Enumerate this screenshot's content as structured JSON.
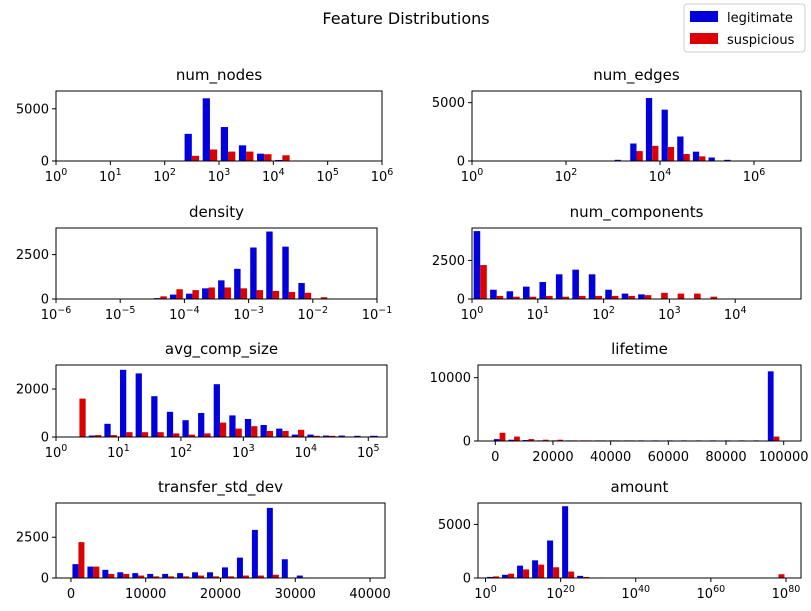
{
  "figure_title": "Feature Distributions",
  "legend": [
    {
      "label": "legitimate",
      "color": "#0000dd"
    },
    {
      "label": "suspicious",
      "color": "#dd0000"
    }
  ],
  "chart_data": [
    {
      "type": "bar",
      "title": "num_nodes",
      "xscale": "log",
      "xlim": [
        0,
        6
      ],
      "ylim": [
        0,
        6700
      ],
      "yticks": [
        0,
        5000
      ],
      "ytick_labels": [
        "0",
        "5000"
      ],
      "xticks": [
        0,
        1,
        2,
        3,
        4,
        5,
        6
      ],
      "xtick_labels": [
        "10",
        "10",
        "10",
        "10",
        "10",
        "10",
        "10"
      ],
      "xtick_sups": [
        "0",
        "1",
        "2",
        "3",
        "4",
        "5",
        "6"
      ],
      "bin_edges": [
        0,
        0.3333,
        0.6667,
        1,
        1.3333,
        1.6667,
        2,
        2.3333,
        2.6667,
        3,
        3.3333,
        3.6667,
        4,
        4.3333,
        4.6667,
        5,
        5.3333,
        5.6667,
        6
      ],
      "series": [
        {
          "name": "legitimate",
          "values": [
            0,
            0,
            0,
            0,
            0,
            0,
            0,
            2600,
            6000,
            3250,
            1500,
            700,
            100,
            50,
            0,
            0,
            0,
            0
          ]
        },
        {
          "name": "suspicious",
          "values": [
            0,
            0,
            0,
            0,
            0,
            0,
            0,
            500,
            1100,
            900,
            900,
            650,
            550,
            0,
            0,
            0,
            0,
            0
          ]
        }
      ]
    },
    {
      "type": "bar",
      "title": "num_edges",
      "xscale": "log",
      "xlim": [
        0,
        7
      ],
      "ylim": [
        0,
        6000
      ],
      "yticks": [
        0,
        5000
      ],
      "ytick_labels": [
        "0",
        "5000"
      ],
      "xticks": [
        0,
        2,
        4,
        6
      ],
      "xtick_labels": [
        "10",
        "10",
        "10",
        "10"
      ],
      "xtick_sups": [
        "0",
        "2",
        "4",
        "6"
      ],
      "bin_edges": [
        0,
        0.3333,
        0.6667,
        1,
        1.3333,
        1.6667,
        2,
        2.3333,
        2.6667,
        3,
        3.3333,
        3.6667,
        4,
        4.3333,
        4.6667,
        5,
        5.3333,
        5.6667,
        6,
        6.3333,
        6.6667,
        7
      ],
      "series": [
        {
          "name": "legitimate",
          "values": [
            0,
            0,
            0,
            0,
            0,
            0,
            0,
            0,
            0,
            100,
            1500,
            5400,
            4400,
            2100,
            800,
            300,
            100,
            0,
            0,
            0,
            0
          ]
        },
        {
          "name": "suspicious",
          "values": [
            0,
            0,
            0,
            0,
            0,
            0,
            0,
            0,
            0,
            0,
            850,
            1300,
            1200,
            600,
            400,
            0,
            0,
            0,
            0,
            0,
            0
          ]
        }
      ]
    },
    {
      "type": "bar",
      "title": "density",
      "xscale": "log",
      "xlim": [
        -6,
        -1
      ],
      "ylim": [
        0,
        4000
      ],
      "yticks": [
        0,
        2500
      ],
      "ytick_labels": [
        "0",
        "2500"
      ],
      "xticks": [
        -6,
        -5,
        -4,
        -3,
        -2,
        -1
      ],
      "xtick_labels": [
        "10",
        "10",
        "10",
        "10",
        "10",
        "10"
      ],
      "xtick_sups": [
        "−6",
        "−5",
        "−4",
        "−3",
        "−2",
        "−1"
      ],
      "bin_edges": [
        -6,
        -5.75,
        -5.5,
        -5.25,
        -5,
        -4.75,
        -4.5,
        -4.25,
        -4,
        -3.75,
        -3.5,
        -3.25,
        -3,
        -2.75,
        -2.5,
        -2.25,
        -2,
        -1.75,
        -1.5,
        -1.25,
        -1
      ],
      "series": [
        {
          "name": "legitimate",
          "values": [
            0,
            0,
            0,
            0,
            0,
            0,
            50,
            250,
            300,
            600,
            1050,
            1700,
            2900,
            3800,
            2950,
            900,
            0,
            0,
            0,
            0
          ]
        },
        {
          "name": "suspicious",
          "values": [
            0,
            0,
            0,
            0,
            0,
            0,
            150,
            550,
            500,
            650,
            650,
            600,
            500,
            450,
            400,
            350,
            100,
            0,
            0,
            0
          ]
        }
      ]
    },
    {
      "type": "bar",
      "title": "num_components",
      "xscale": "log",
      "xlim": [
        0,
        5
      ],
      "ylim": [
        0,
        4600
      ],
      "yticks": [
        0,
        2500
      ],
      "ytick_labels": [
        "0",
        "2500"
      ],
      "xticks": [
        0,
        1,
        2,
        3,
        4
      ],
      "xtick_labels": [
        "10",
        "10",
        "10",
        "10",
        "10"
      ],
      "xtick_sups": [
        "0",
        "1",
        "2",
        "3",
        "4"
      ],
      "bin_edges": [
        0,
        0.25,
        0.5,
        0.75,
        1,
        1.25,
        1.5,
        1.75,
        2,
        2.25,
        2.5,
        2.75,
        3,
        3.25,
        3.5,
        3.75,
        4,
        4.25,
        4.5,
        4.75,
        5
      ],
      "series": [
        {
          "name": "legitimate",
          "values": [
            4400,
            600,
            500,
            800,
            1100,
            1600,
            1900,
            1600,
            600,
            350,
            300,
            0,
            0,
            0,
            0,
            0,
            0,
            0,
            0,
            0
          ]
        },
        {
          "name": "suspicious",
          "values": [
            2200,
            200,
            150,
            150,
            200,
            150,
            200,
            200,
            200,
            200,
            250,
            400,
            350,
            350,
            150,
            0,
            0,
            0,
            0,
            0
          ]
        }
      ]
    },
    {
      "type": "bar",
      "title": "avg_comp_size",
      "xscale": "log",
      "xlim": [
        0,
        5.3
      ],
      "ylim": [
        0,
        3000
      ],
      "yticks": [
        0,
        2000
      ],
      "ytick_labels": [
        "0",
        "2000"
      ],
      "xticks": [
        0,
        1,
        2,
        3,
        4,
        5
      ],
      "xtick_labels": [
        "10",
        "10",
        "10",
        "10",
        "10",
        "10"
      ],
      "xtick_sups": [
        "0",
        "1",
        "2",
        "3",
        "4",
        "5"
      ],
      "bin_edges": [
        0,
        0.25,
        0.5,
        0.75,
        1,
        1.25,
        1.5,
        1.75,
        2,
        2.25,
        2.5,
        2.75,
        3,
        3.25,
        3.5,
        3.75,
        4,
        4.25,
        4.5,
        4.75,
        5,
        5.3
      ],
      "series": [
        {
          "name": "legitimate",
          "values": [
            0,
            0,
            60,
            550,
            2800,
            2650,
            1700,
            1050,
            700,
            1000,
            2200,
            900,
            750,
            500,
            350,
            100,
            100,
            60,
            60,
            50,
            50
          ]
        },
        {
          "name": "suspicious",
          "values": [
            0,
            1600,
            80,
            80,
            200,
            200,
            200,
            150,
            100,
            150,
            600,
            350,
            450,
            250,
            250,
            300,
            50,
            50,
            0,
            0,
            0
          ]
        }
      ]
    },
    {
      "type": "bar",
      "title": "lifetime",
      "xscale": "linear",
      "xlim": [
        -6000,
        106000
      ],
      "ylim": [
        0,
        12000
      ],
      "yticks": [
        0,
        10000
      ],
      "ytick_labels": [
        "0",
        "10000"
      ],
      "xticks": [
        0,
        20000,
        40000,
        60000,
        80000,
        100000
      ],
      "xtick_labels": [
        "0",
        "20000",
        "40000",
        "60000",
        "80000",
        "100000"
      ],
      "bin_edges": [
        -1000,
        4000,
        9000,
        14000,
        19000,
        24000,
        29000,
        34000,
        39000,
        44000,
        49000,
        54000,
        59000,
        64000,
        69000,
        74000,
        79000,
        84000,
        89000,
        94000,
        99000
      ],
      "series": [
        {
          "name": "legitimate",
          "values": [
            300,
            200,
            150,
            100,
            100,
            100,
            100,
            100,
            100,
            100,
            100,
            100,
            100,
            100,
            100,
            100,
            100,
            100,
            100,
            11000
          ]
        },
        {
          "name": "suspicious",
          "values": [
            1300,
            700,
            300,
            200,
            200,
            100,
            100,
            100,
            100,
            100,
            50,
            50,
            50,
            50,
            50,
            50,
            50,
            50,
            50,
            700
          ]
        }
      ]
    },
    {
      "type": "bar",
      "title": "transfer_std_dev",
      "xscale": "linear",
      "xlim": [
        -2000,
        42000
      ],
      "ylim": [
        0,
        4600
      ],
      "yticks": [
        0,
        2500
      ],
      "ytick_labels": [
        "0",
        "2500"
      ],
      "xticks": [
        0,
        10000,
        20000,
        30000,
        40000
      ],
      "xtick_labels": [
        "0",
        "10000",
        "20000",
        "30000",
        "40000"
      ],
      "bin_edges": [
        0,
        2000,
        4000,
        6000,
        8000,
        10000,
        12000,
        14000,
        16000,
        18000,
        20000,
        22000,
        24000,
        26000,
        28000,
        30000,
        32000,
        34000,
        36000,
        38000,
        40000
      ],
      "series": [
        {
          "name": "legitimate",
          "values": [
            850,
            700,
            500,
            350,
            300,
            250,
            250,
            300,
            350,
            350,
            650,
            1250,
            2950,
            4300,
            1150,
            150,
            0,
            0,
            0,
            0
          ]
        },
        {
          "name": "suspicious",
          "values": [
            2200,
            700,
            250,
            250,
            150,
            100,
            100,
            100,
            150,
            100,
            100,
            150,
            150,
            200,
            0,
            0,
            0,
            0,
            0,
            0
          ]
        }
      ]
    },
    {
      "type": "bar",
      "title": "amount",
      "xscale": "log",
      "xlim": [
        -2,
        84
      ],
      "ylim": [
        0,
        7000
      ],
      "yticks": [
        0,
        5000
      ],
      "ytick_labels": [
        "0",
        "5000"
      ],
      "xticks": [
        0,
        20,
        40,
        60,
        80
      ],
      "xtick_labels": [
        "10",
        "10",
        "10",
        "10",
        "10"
      ],
      "xtick_sups": [
        "0",
        "20",
        "40",
        "60",
        "80"
      ],
      "bin_edges": [
        0,
        4,
        8,
        12,
        16,
        20,
        24,
        28,
        32,
        36,
        40,
        44,
        48,
        52,
        56,
        60,
        64,
        68,
        72,
        76,
        80
      ],
      "series": [
        {
          "name": "legitimate",
          "values": [
            100,
            300,
            1150,
            1650,
            3500,
            6700,
            200,
            0,
            0,
            0,
            0,
            0,
            0,
            0,
            0,
            0,
            0,
            0,
            0,
            0
          ]
        },
        {
          "name": "suspicious",
          "values": [
            150,
            400,
            800,
            1250,
            1000,
            600,
            100,
            50,
            0,
            0,
            0,
            0,
            0,
            0,
            0,
            0,
            0,
            0,
            0,
            350
          ]
        }
      ]
    }
  ]
}
